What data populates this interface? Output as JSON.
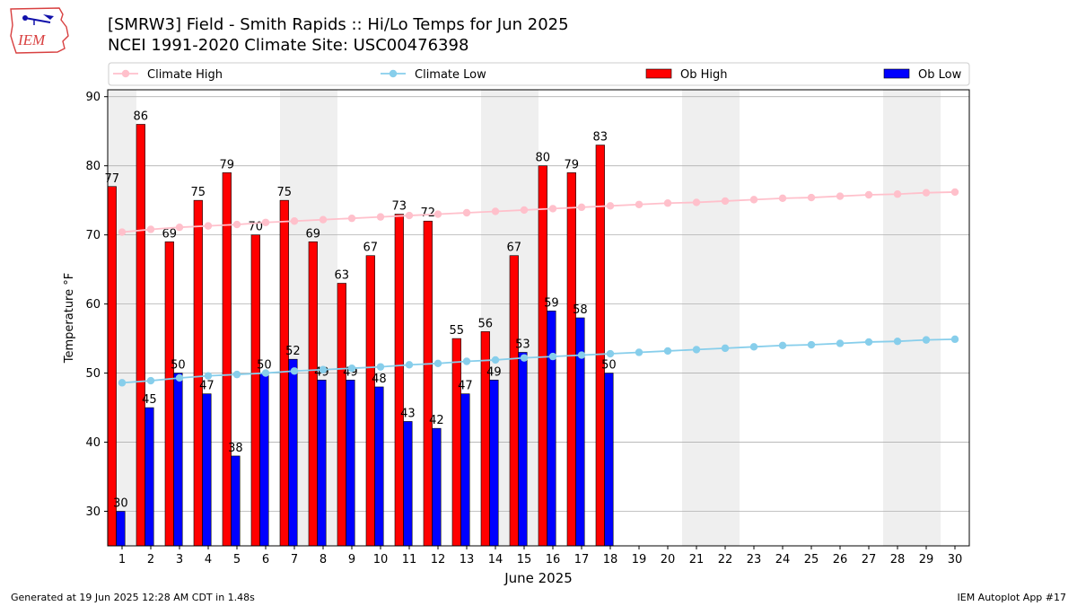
{
  "header": {
    "logo_text": "IEM",
    "title_line1": "[SMRW3] Field - Smith Rapids :: Hi/Lo Temps for Jun 2025",
    "title_line2": "NCEI 1991-2020 Climate Site: USC00476398"
  },
  "footer": {
    "generated": "Generated at 19 Jun 2025 12:28 AM CDT in 1.48s",
    "app": "IEM Autoplot App #17"
  },
  "colors": {
    "ob_high": "#ff0000",
    "ob_low": "#0000ff",
    "climate_high": "#ffc0cb",
    "climate_low": "#87ceeb",
    "weekend_band": "#efefef",
    "grid": "#b0b0b0"
  },
  "chart_data": {
    "type": "bar",
    "xlabel": "June 2025",
    "ylabel": "Temperature °F",
    "ylim": [
      25,
      91
    ],
    "yticks": [
      30,
      40,
      50,
      60,
      70,
      80,
      90
    ],
    "grid": "horizontal",
    "legend_position": "top",
    "days": [
      1,
      2,
      3,
      4,
      5,
      6,
      7,
      8,
      9,
      10,
      11,
      12,
      13,
      14,
      15,
      16,
      17,
      18,
      19,
      20,
      21,
      22,
      23,
      24,
      25,
      26,
      27,
      28,
      29,
      30
    ],
    "weekend_days": [
      1,
      7,
      8,
      14,
      15,
      21,
      22,
      28,
      29
    ],
    "series": [
      {
        "name": "Climate High",
        "kind": "line",
        "values": [
          70.4,
          70.8,
          71.1,
          71.3,
          71.5,
          71.8,
          72.0,
          72.2,
          72.4,
          72.6,
          72.8,
          73.0,
          73.2,
          73.4,
          73.6,
          73.8,
          74.0,
          74.2,
          74.4,
          74.6,
          74.7,
          74.9,
          75.1,
          75.3,
          75.4,
          75.6,
          75.8,
          75.9,
          76.1,
          76.2
        ]
      },
      {
        "name": "Climate Low",
        "kind": "line",
        "values": [
          48.6,
          48.9,
          49.3,
          49.6,
          49.8,
          50.0,
          50.3,
          50.5,
          50.7,
          50.9,
          51.2,
          51.4,
          51.7,
          51.9,
          52.2,
          52.4,
          52.6,
          52.8,
          53.0,
          53.2,
          53.4,
          53.6,
          53.8,
          54.0,
          54.1,
          54.3,
          54.5,
          54.6,
          54.8,
          54.9
        ]
      },
      {
        "name": "Ob High",
        "kind": "bar",
        "values": [
          77,
          86,
          69,
          75,
          79,
          70,
          75,
          69,
          63,
          67,
          73,
          72,
          55,
          56,
          67,
          80,
          79,
          83
        ]
      },
      {
        "name": "Ob Low",
        "kind": "bar",
        "values": [
          30,
          45,
          50,
          47,
          38,
          50,
          52,
          49,
          49,
          48,
          43,
          42,
          47,
          49,
          53,
          59,
          58,
          50
        ]
      }
    ]
  }
}
